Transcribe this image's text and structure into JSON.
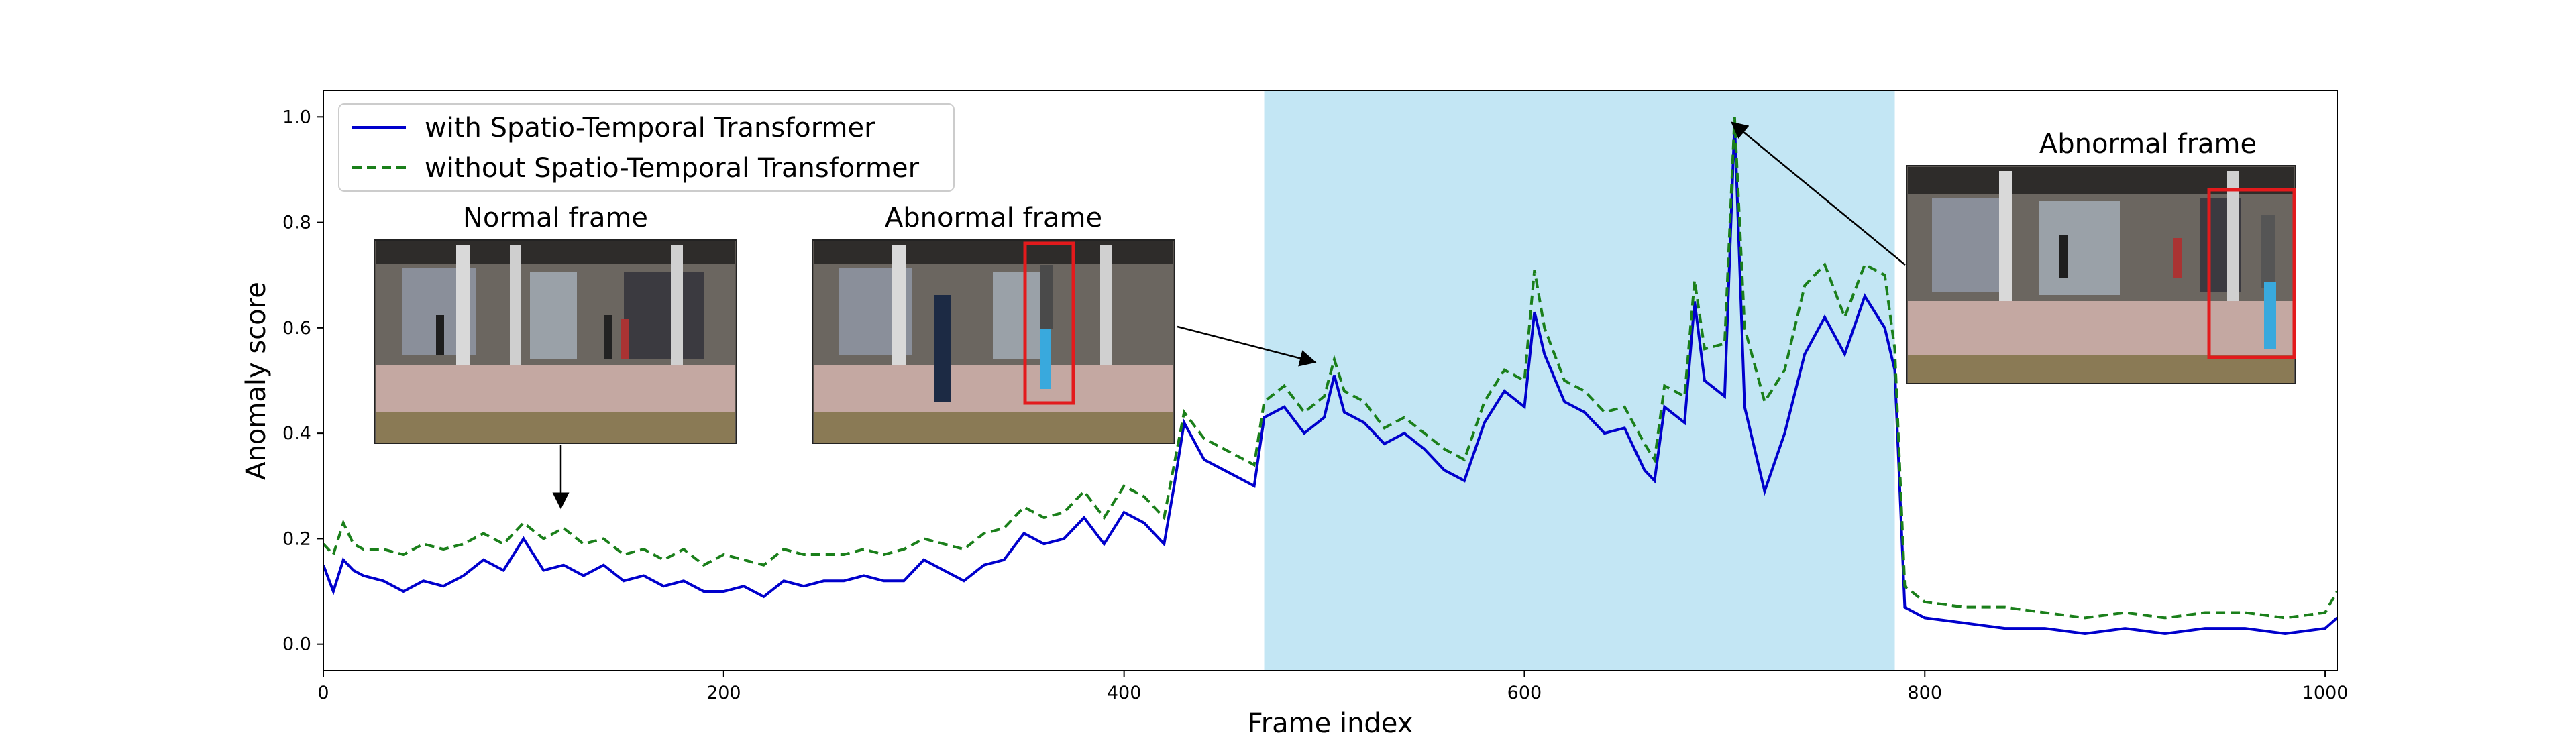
{
  "chart_data": {
    "type": "line",
    "title": "",
    "xlabel": "Frame index",
    "ylabel": "Anomaly score",
    "xlim": [
      0,
      1006
    ],
    "ylim": [
      -0.05,
      1.05
    ],
    "xticks": [
      0,
      200,
      400,
      600,
      800,
      1000
    ],
    "yticks": [
      0.0,
      0.2,
      0.4,
      0.6,
      0.8,
      1.0
    ],
    "xtick_labels": [
      "0",
      "200",
      "400",
      "600",
      "800",
      "1000"
    ],
    "ytick_labels": [
      "0.0",
      "0.2",
      "0.4",
      "0.6",
      "0.8",
      "1.0"
    ],
    "grid": false,
    "legend_position": "top-left",
    "abnormal_region": {
      "x_start": 470,
      "x_end": 785,
      "color": "#c3e6f4"
    },
    "series": [
      {
        "name": "with Spatio-Temporal Transformer",
        "color": "#0000cc",
        "style": "solid",
        "x": [
          0,
          5,
          10,
          15,
          20,
          30,
          40,
          50,
          60,
          70,
          80,
          90,
          100,
          110,
          120,
          130,
          140,
          150,
          160,
          170,
          180,
          190,
          200,
          210,
          220,
          230,
          240,
          250,
          260,
          270,
          280,
          290,
          300,
          310,
          320,
          330,
          340,
          350,
          360,
          370,
          380,
          390,
          400,
          410,
          420,
          425,
          430,
          440,
          450,
          460,
          465,
          470,
          480,
          490,
          500,
          505,
          510,
          520,
          530,
          540,
          550,
          560,
          570,
          580,
          590,
          600,
          605,
          610,
          620,
          630,
          640,
          650,
          660,
          665,
          670,
          680,
          685,
          690,
          700,
          705,
          710,
          720,
          730,
          740,
          750,
          760,
          770,
          780,
          785,
          790,
          800,
          820,
          840,
          860,
          880,
          900,
          920,
          940,
          960,
          980,
          1000,
          1006
        ],
        "y": [
          0.15,
          0.1,
          0.16,
          0.14,
          0.13,
          0.12,
          0.1,
          0.12,
          0.11,
          0.13,
          0.16,
          0.14,
          0.2,
          0.14,
          0.15,
          0.13,
          0.15,
          0.12,
          0.13,
          0.11,
          0.12,
          0.1,
          0.1,
          0.11,
          0.09,
          0.12,
          0.11,
          0.12,
          0.12,
          0.13,
          0.12,
          0.12,
          0.16,
          0.14,
          0.12,
          0.15,
          0.16,
          0.21,
          0.19,
          0.2,
          0.24,
          0.19,
          0.25,
          0.23,
          0.19,
          0.3,
          0.42,
          0.35,
          0.33,
          0.31,
          0.3,
          0.43,
          0.45,
          0.4,
          0.43,
          0.51,
          0.44,
          0.42,
          0.38,
          0.4,
          0.37,
          0.33,
          0.31,
          0.42,
          0.48,
          0.45,
          0.63,
          0.55,
          0.46,
          0.44,
          0.4,
          0.41,
          0.33,
          0.31,
          0.45,
          0.42,
          0.65,
          0.5,
          0.47,
          0.99,
          0.45,
          0.29,
          0.4,
          0.55,
          0.62,
          0.55,
          0.66,
          0.6,
          0.52,
          0.07,
          0.05,
          0.04,
          0.03,
          0.03,
          0.02,
          0.03,
          0.02,
          0.03,
          0.03,
          0.02,
          0.03,
          0.05
        ]
      },
      {
        "name": "without Spatio-Temporal Transformer",
        "color": "#1a7f1a",
        "style": "dashed",
        "x": [
          0,
          5,
          10,
          15,
          20,
          30,
          40,
          50,
          60,
          70,
          80,
          90,
          100,
          110,
          120,
          130,
          140,
          150,
          160,
          170,
          180,
          190,
          200,
          210,
          220,
          230,
          240,
          250,
          260,
          270,
          280,
          290,
          300,
          310,
          320,
          330,
          340,
          350,
          360,
          370,
          380,
          390,
          400,
          410,
          420,
          425,
          430,
          440,
          450,
          460,
          465,
          470,
          480,
          490,
          500,
          505,
          510,
          520,
          530,
          540,
          550,
          560,
          570,
          580,
          590,
          600,
          605,
          610,
          620,
          630,
          640,
          650,
          660,
          665,
          670,
          680,
          685,
          690,
          700,
          705,
          710,
          720,
          730,
          740,
          750,
          760,
          770,
          780,
          785,
          790,
          800,
          820,
          840,
          860,
          880,
          900,
          920,
          940,
          960,
          980,
          1000,
          1006
        ],
        "y": [
          0.19,
          0.17,
          0.23,
          0.19,
          0.18,
          0.18,
          0.17,
          0.19,
          0.18,
          0.19,
          0.21,
          0.19,
          0.23,
          0.2,
          0.22,
          0.19,
          0.2,
          0.17,
          0.18,
          0.16,
          0.18,
          0.15,
          0.17,
          0.16,
          0.15,
          0.18,
          0.17,
          0.17,
          0.17,
          0.18,
          0.17,
          0.18,
          0.2,
          0.19,
          0.18,
          0.21,
          0.22,
          0.26,
          0.24,
          0.25,
          0.29,
          0.24,
          0.3,
          0.28,
          0.24,
          0.34,
          0.44,
          0.39,
          0.37,
          0.35,
          0.34,
          0.46,
          0.49,
          0.44,
          0.47,
          0.54,
          0.48,
          0.46,
          0.41,
          0.43,
          0.4,
          0.37,
          0.35,
          0.46,
          0.52,
          0.5,
          0.71,
          0.6,
          0.5,
          0.48,
          0.44,
          0.45,
          0.38,
          0.35,
          0.49,
          0.47,
          0.69,
          0.56,
          0.57,
          1.0,
          0.6,
          0.46,
          0.52,
          0.68,
          0.72,
          0.62,
          0.72,
          0.7,
          0.56,
          0.11,
          0.08,
          0.07,
          0.07,
          0.06,
          0.05,
          0.06,
          0.05,
          0.06,
          0.06,
          0.05,
          0.06,
          0.1
        ]
      }
    ],
    "annotations": [
      {
        "label": "Normal frame",
        "target_x": 120,
        "target_y": 0.25
      },
      {
        "label": "Abnormal frame",
        "target_x": 500,
        "target_y": 0.53
      },
      {
        "label": "Abnormal frame",
        "target_x": 705,
        "target_y": 1.0
      }
    ]
  }
}
